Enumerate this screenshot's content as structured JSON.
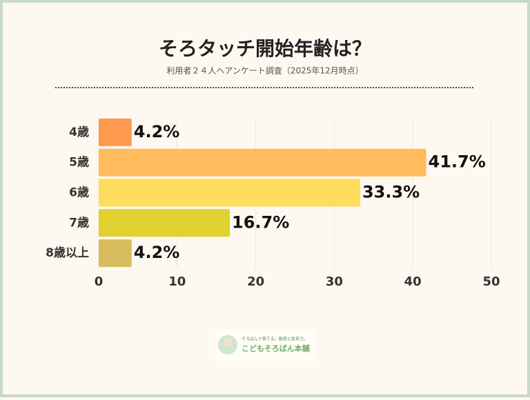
{
  "chart_data": {
    "type": "hbar",
    "title": "そろタッチ開始年齢は？",
    "subtitle": "利用者２４人へアンケート調査（2025年12月時点）",
    "categories": [
      "4歳",
      "5歳",
      "6歳",
      "7歳",
      "8歳以上"
    ],
    "values": [
      4.2,
      41.7,
      33.3,
      16.7,
      4.2
    ],
    "value_labels": [
      "4.2%",
      "41.7%",
      "33.3%",
      "16.7%",
      "4.2%"
    ],
    "colors": [
      "#ff9950",
      "#ffbb5c",
      "#ffdd5c",
      "#e0d030",
      "#d8bb5c"
    ],
    "xlim": [
      0,
      50
    ],
    "xticks": [
      0,
      10,
      20,
      30,
      40,
      50
    ],
    "grid": true
  },
  "logo": {
    "tagline": "そろばんで育てる。数感と思考力。",
    "name": "こどもそろばん本舗"
  }
}
